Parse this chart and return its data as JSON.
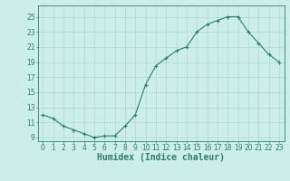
{
  "x": [
    0,
    1,
    2,
    3,
    4,
    5,
    6,
    7,
    8,
    9,
    10,
    11,
    12,
    13,
    14,
    15,
    16,
    17,
    18,
    19,
    20,
    21,
    22,
    23
  ],
  "y": [
    12.0,
    11.5,
    10.5,
    10.0,
    9.5,
    9.0,
    9.2,
    9.2,
    10.5,
    12.0,
    16.0,
    18.5,
    19.5,
    20.5,
    21.0,
    23.0,
    24.0,
    24.5,
    25.0,
    25.0,
    23.0,
    21.5,
    20.0,
    19.0
  ],
  "line_color": "#2e7d6e",
  "marker": "+",
  "marker_size": 3,
  "bg_color": "#cceee8",
  "grid_color": "#aad4ce",
  "xlabel": "Humidex (Indice chaleur)",
  "xlim": [
    -0.5,
    23.5
  ],
  "ylim": [
    8.5,
    26.5
  ],
  "yticks": [
    9,
    11,
    13,
    15,
    17,
    19,
    21,
    23,
    25
  ],
  "xticks": [
    0,
    1,
    2,
    3,
    4,
    5,
    6,
    7,
    8,
    9,
    10,
    11,
    12,
    13,
    14,
    15,
    16,
    17,
    18,
    19,
    20,
    21,
    22,
    23
  ],
  "tick_label_fontsize": 5.5,
  "xlabel_fontsize": 7.0,
  "line_color_dark": "#2e7d6e",
  "spine_color": "#2e7d6e"
}
